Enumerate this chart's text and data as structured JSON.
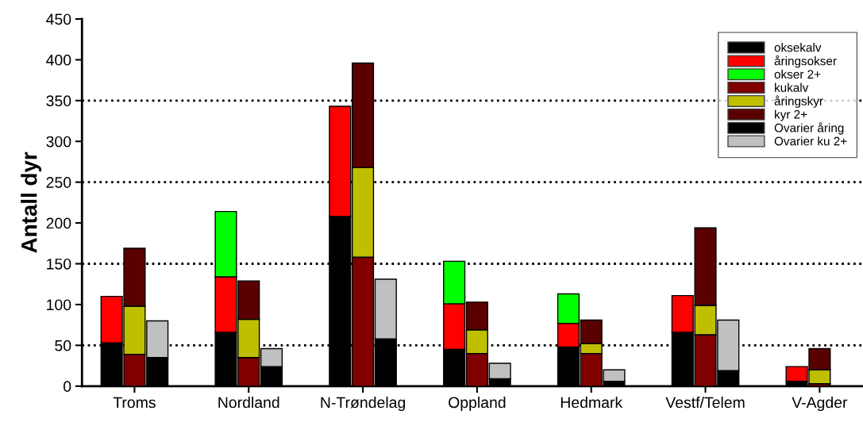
{
  "chart_data": {
    "type": "bar",
    "stacked": true,
    "ylabel": "Antall dyr",
    "categories": [
      null,
      "Troms",
      null,
      null,
      null,
      null,
      "Nordland",
      null,
      null,
      null,
      null,
      "N-Trøndelag",
      null,
      null,
      null,
      null,
      "Oppland",
      null,
      null,
      null,
      null,
      "Hedmark",
      null,
      null,
      null,
      null,
      "Vestf/Telem",
      null,
      null,
      null,
      null,
      "V-Agder",
      null
    ],
    "series": [
      {
        "name": "oksekalv",
        "color": "#000000",
        "values": [
          53,
          null,
          null,
          null,
          null,
          66,
          null,
          null,
          null,
          null,
          208,
          null,
          null,
          null,
          null,
          45,
          null,
          null,
          null,
          null,
          48,
          null,
          null,
          null,
          null,
          66,
          null,
          null,
          null,
          null,
          6,
          null,
          null
        ]
      },
      {
        "name": "åringsokser",
        "color": "#ff0000",
        "values": [
          57,
          null,
          null,
          null,
          null,
          68,
          null,
          null,
          null,
          null,
          135,
          null,
          null,
          null,
          null,
          56,
          null,
          null,
          null,
          null,
          29,
          null,
          null,
          null,
          null,
          45,
          null,
          null,
          null,
          null,
          18,
          null,
          null
        ]
      },
      {
        "name": "okser 2+",
        "color": "#00ff00",
        "values": [
          null,
          null,
          null,
          null,
          null,
          80,
          null,
          null,
          null,
          null,
          null,
          null,
          null,
          null,
          null,
          52,
          null,
          null,
          null,
          null,
          36,
          null,
          null,
          null,
          null,
          null,
          null,
          null,
          null,
          null,
          null,
          null,
          null
        ]
      },
      {
        "name": "kukalv",
        "color": "#800000",
        "values": [
          null,
          39,
          null,
          null,
          null,
          null,
          35,
          null,
          null,
          null,
          null,
          158,
          null,
          null,
          null,
          null,
          40,
          null,
          null,
          null,
          null,
          40,
          null,
          null,
          null,
          null,
          63,
          null,
          null,
          null,
          null,
          3,
          null
        ]
      },
      {
        "name": "åringskyr",
        "color": "#bfbf00",
        "values": [
          null,
          59,
          null,
          null,
          null,
          null,
          47,
          null,
          null,
          null,
          null,
          110,
          null,
          null,
          null,
          null,
          29,
          null,
          null,
          null,
          null,
          12,
          null,
          null,
          null,
          null,
          36,
          null,
          null,
          null,
          null,
          17,
          null
        ]
      },
      {
        "name": "kyr 2+",
        "color": "#5a0000",
        "values": [
          null,
          71,
          null,
          null,
          null,
          null,
          47,
          null,
          null,
          null,
          null,
          128,
          null,
          null,
          null,
          null,
          34,
          null,
          null,
          null,
          null,
          29,
          null,
          null,
          null,
          null,
          95,
          null,
          null,
          null,
          null,
          26,
          null
        ]
      },
      {
        "name": "Ovarier åring",
        "color": "#000000",
        "values": [
          null,
          null,
          35,
          null,
          null,
          null,
          null,
          24,
          null,
          null,
          null,
          null,
          58,
          null,
          null,
          null,
          null,
          9,
          null,
          null,
          null,
          null,
          6,
          null,
          null,
          null,
          null,
          19,
          null,
          null,
          null,
          null,
          null
        ]
      },
      {
        "name": "Ovarier ku 2+",
        "color": "#c0c0c0",
        "values": [
          null,
          null,
          45,
          null,
          null,
          null,
          null,
          22,
          null,
          null,
          null,
          null,
          73,
          null,
          null,
          null,
          null,
          19,
          null,
          null,
          null,
          null,
          14,
          null,
          null,
          null,
          null,
          62,
          null,
          null,
          null,
          null,
          null
        ]
      }
    ],
    "ylim": [
      0,
      450
    ],
    "yticks": [
      0,
      50,
      100,
      150,
      200,
      250,
      300,
      350,
      400,
      450
    ],
    "ref_lines": [
      {
        "axis": "y",
        "value": 50,
        "color": "#000000",
        "line_style": "dotted"
      },
      {
        "axis": "y",
        "value": 150,
        "color": "#000000",
        "line_style": "dotted"
      },
      {
        "axis": "y",
        "value": 250,
        "color": "#000000",
        "line_style": "dotted"
      },
      {
        "axis": "y",
        "value": 350,
        "color": "#000000",
        "line_style": "dotted"
      }
    ],
    "legend": "top right"
  }
}
